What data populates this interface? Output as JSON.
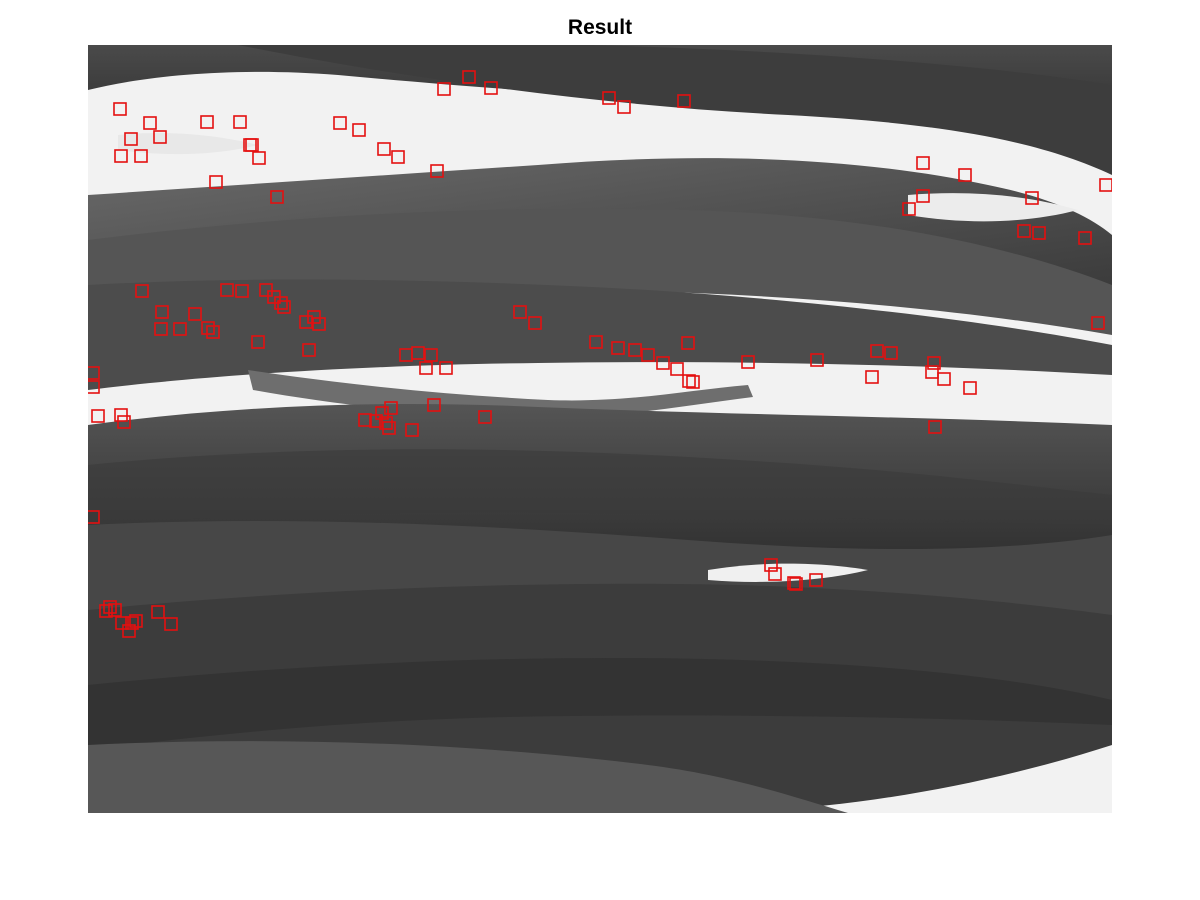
{
  "figure": {
    "title": "Result"
  },
  "image": {
    "description_kind": "grayscale photograph of long plant leaves with detected feature markers",
    "marker_color": "#e41010",
    "marker_shape": "square-outline"
  },
  "colors": {
    "background": "#ffffff",
    "leaf_dark": "#3a3a3a",
    "leaf_mid": "#5a5a5a",
    "sky": "#f4f4f4"
  }
}
